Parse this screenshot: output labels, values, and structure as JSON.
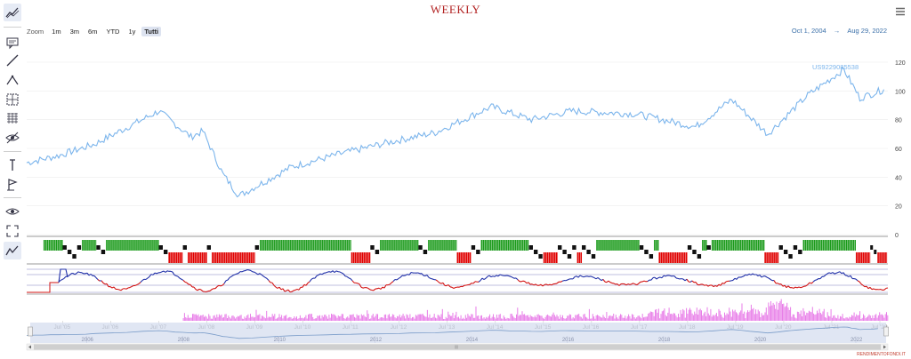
{
  "title": "WEEKLY",
  "zoom": {
    "label": "Zoom",
    "buttons": [
      "1m",
      "3m",
      "6m",
      "YTD",
      "1y",
      "Tutti"
    ],
    "selected": "Tutti"
  },
  "range": {
    "from": "Oct 1, 2004",
    "arrow": "→",
    "to": "Aug 29, 2022"
  },
  "series_label": "US9229085538",
  "watermark": "RENDIMENTOFONDI.IT",
  "toolbar_icons": [
    "line-chart-icon",
    "annotation-icon",
    "trend-line-icon",
    "path-icon",
    "measure-icon",
    "grid-icon",
    "hide-icon",
    "vertical-line-icon",
    "flag-icon",
    "eye-icon",
    "fullscreen-icon",
    "chart-type-icon"
  ],
  "colors": {
    "price": "#7cb5ec",
    "title": "#b22222",
    "green": "#1a9a1a",
    "red": "#e00000",
    "black": "#111111",
    "osc_blue": "#1f2fa8",
    "osc_red": "#d21010",
    "volume": "#e87de8",
    "navigator": "#d6deef"
  },
  "chart_data": {
    "type": "line",
    "series": [
      {
        "name": "US9229085538",
        "x": [
          "2004-10",
          "2005-06",
          "2006-03",
          "2007-07",
          "2008-03",
          "2008-06",
          "2008-11",
          "2009-03",
          "2010-04",
          "2011-04",
          "2012-04",
          "2013-04",
          "2014-06",
          "2015-04",
          "2016-02",
          "2017-06",
          "2018-09",
          "2019-06",
          "2020-03",
          "2021-01",
          "2021-10",
          "2022-02",
          "2022-08"
        ],
        "y": [
          50,
          55,
          63,
          86,
          68,
          72,
          42,
          27,
          47,
          56,
          64,
          71,
          89,
          80,
          86,
          84,
          75,
          94,
          70,
          97,
          115,
          95,
          101
        ]
      }
    ],
    "y_ticks": [
      0,
      20,
      40,
      60,
      80,
      100,
      120
    ],
    "ylim": [
      0,
      120
    ],
    "x_ticks": [
      "Jul '05",
      "Jul '06",
      "Jul '07",
      "Jul '08",
      "Jul '09",
      "Jul '10",
      "Jul '11",
      "Jul '12",
      "Jul '13",
      "Jul '14",
      "Jul '15",
      "Jul '16",
      "Jul '17",
      "Jul '18",
      "Jul '19",
      "Jul '20",
      "Jul '21",
      "Jul '22"
    ],
    "navigator_years": [
      "2006",
      "2008",
      "2010",
      "2012",
      "2014",
      "2016",
      "2018",
      "2020",
      "2022"
    ],
    "grid": true
  }
}
